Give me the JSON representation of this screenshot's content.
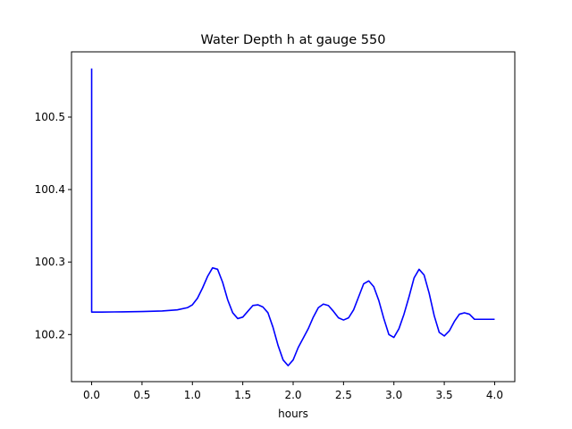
{
  "chart_data": {
    "type": "line",
    "title": "Water Depth h at gauge 550",
    "xlabel": "hours",
    "ylabel": "",
    "xlim": [
      -0.2,
      4.2
    ],
    "ylim": [
      100.135,
      100.59
    ],
    "grid": false,
    "xticks": [
      0.0,
      0.5,
      1.0,
      1.5,
      2.0,
      2.5,
      3.0,
      3.5,
      4.0
    ],
    "xtick_labels": [
      "0.0",
      "0.5",
      "1.0",
      "1.5",
      "2.0",
      "2.5",
      "3.0",
      "3.5",
      "4.0"
    ],
    "yticks": [
      100.2,
      100.3,
      100.4,
      100.5
    ],
    "ytick_labels": [
      "100.2",
      "100.3",
      "100.4",
      "100.5"
    ],
    "series": [
      {
        "color": "#0000ff",
        "x": [
          0.0,
          0.0,
          0.1,
          0.3,
          0.5,
          0.7,
          0.85,
          0.95,
          1.0,
          1.05,
          1.1,
          1.15,
          1.2,
          1.25,
          1.3,
          1.35,
          1.4,
          1.45,
          1.5,
          1.55,
          1.6,
          1.65,
          1.7,
          1.75,
          1.8,
          1.85,
          1.9,
          1.95,
          2.0,
          2.05,
          2.1,
          2.15,
          2.2,
          2.25,
          2.3,
          2.35,
          2.4,
          2.45,
          2.5,
          2.55,
          2.6,
          2.65,
          2.7,
          2.75,
          2.8,
          2.85,
          2.9,
          2.95,
          3.0,
          3.05,
          3.1,
          3.15,
          3.2,
          3.25,
          3.3,
          3.35,
          3.4,
          3.45,
          3.5,
          3.55,
          3.6,
          3.65,
          3.7,
          3.75,
          3.8,
          3.85,
          3.9,
          3.95,
          4.0
        ],
        "y": [
          100.567,
          100.231,
          100.231,
          100.2313,
          100.2317,
          100.2325,
          100.234,
          100.237,
          100.241,
          100.25,
          100.264,
          100.28,
          100.292,
          100.29,
          100.272,
          100.248,
          100.23,
          100.222,
          100.224,
          100.232,
          100.24,
          100.241,
          100.238,
          100.23,
          100.21,
          100.185,
          100.165,
          100.157,
          100.165,
          100.182,
          100.195,
          100.208,
          100.224,
          100.237,
          100.242,
          100.24,
          100.232,
          100.223,
          100.22,
          100.223,
          100.234,
          100.252,
          100.27,
          100.274,
          100.266,
          100.247,
          100.222,
          100.2,
          100.196,
          100.208,
          100.228,
          100.252,
          100.278,
          100.29,
          100.282,
          100.257,
          100.226,
          100.203,
          100.198,
          100.205,
          100.218,
          100.228,
          100.23,
          100.228,
          100.221,
          100.221,
          100.221,
          100.221,
          100.221
        ]
      }
    ]
  }
}
